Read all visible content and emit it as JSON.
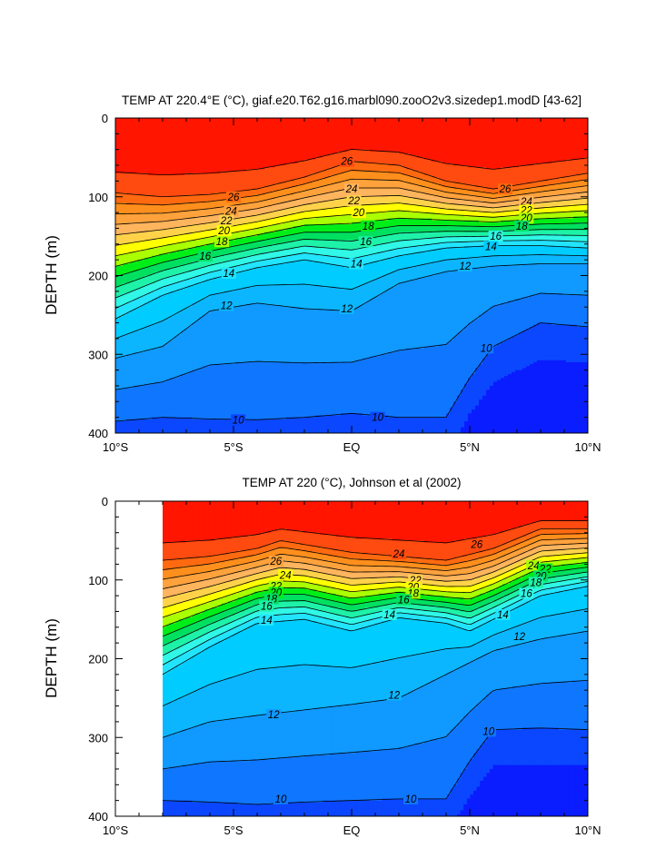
{
  "colors": {
    "bands": [
      "#0a1dff",
      "#0b47ff",
      "#0f77ff",
      "#1099ff",
      "#0cb6ff",
      "#00ccff",
      "#22e4ff",
      "#30f7e6",
      "#1ef2a8",
      "#00e060",
      "#00ee18",
      "#aaff00",
      "#ffff00",
      "#ffd24a",
      "#ffb45e",
      "#ffa23c",
      "#ff8f1c",
      "#ff6a10",
      "#ff4a10",
      "#ff1500"
    ],
    "line": "#000000"
  },
  "chart_data": [
    {
      "type": "contour",
      "title": "TEMP AT 220.4°E (°C), giaf.e20.T62.g16.marbl090.zooO2v3.sizedep1.modD [43-62]",
      "ylabel": "DEPTH (m)",
      "xlabel": "",
      "xlim": [
        -10,
        10
      ],
      "ylim": [
        400,
        0
      ],
      "x_ticks": [
        -10,
        -5,
        0,
        5,
        10
      ],
      "x_tick_labels": [
        "10°S",
        "5°S",
        "EQ",
        "5°N",
        "10°N"
      ],
      "y_ticks": [
        0,
        100,
        200,
        300,
        400
      ],
      "y_tick_labels": [
        "0",
        "100",
        "200",
        "300",
        "400"
      ],
      "contour_interval": 1,
      "contour_labels": [
        {
          "text": "26",
          "x": -5,
          "y": 100
        },
        {
          "text": "24",
          "x": -5.1,
          "y": 118
        },
        {
          "text": "22",
          "x": -5.3,
          "y": 130
        },
        {
          "text": "20",
          "x": -5.4,
          "y": 143
        },
        {
          "text": "18",
          "x": -5.5,
          "y": 157
        },
        {
          "text": "16",
          "x": -6.2,
          "y": 175
        },
        {
          "text": "14",
          "x": -5.2,
          "y": 197
        },
        {
          "text": "12",
          "x": -5.3,
          "y": 238
        },
        {
          "text": "10",
          "x": -4.8,
          "y": 383
        },
        {
          "text": "26",
          "x": -0.2,
          "y": 55
        },
        {
          "text": "24",
          "x": 0.0,
          "y": 90
        },
        {
          "text": "22",
          "x": 0.1,
          "y": 105
        },
        {
          "text": "20",
          "x": 0.3,
          "y": 120
        },
        {
          "text": "18",
          "x": 0.7,
          "y": 137
        },
        {
          "text": "16",
          "x": 0.6,
          "y": 157
        },
        {
          "text": "14",
          "x": 0.2,
          "y": 185
        },
        {
          "text": "12",
          "x": -0.2,
          "y": 242
        },
        {
          "text": "10",
          "x": 1.1,
          "y": 380
        },
        {
          "text": "12",
          "x": 4.8,
          "y": 188
        },
        {
          "text": "10",
          "x": 5.7,
          "y": 292
        },
        {
          "text": "26",
          "x": 6.5,
          "y": 90
        },
        {
          "text": "24",
          "x": 7.4,
          "y": 106
        },
        {
          "text": "22",
          "x": 7.4,
          "y": 117
        },
        {
          "text": "20",
          "x": 7.4,
          "y": 127
        },
        {
          "text": "18",
          "x": 7.2,
          "y": 137
        },
        {
          "text": "16",
          "x": 6.1,
          "y": 150
        },
        {
          "text": "14",
          "x": 5.9,
          "y": 163
        }
      ]
    },
    {
      "type": "contour",
      "title": "TEMP AT 220 (°C), Johnson et al (2002)",
      "ylabel": "DEPTH (m)",
      "xlabel": "",
      "xlim": [
        -10,
        10
      ],
      "ylim": [
        400,
        0
      ],
      "data_extent_x": [
        -8,
        10
      ],
      "x_ticks": [
        -10,
        -5,
        0,
        5,
        10
      ],
      "x_tick_labels": [
        "10°S",
        "5°S",
        "EQ",
        "5°N",
        "10°N"
      ],
      "y_ticks": [
        0,
        100,
        200,
        300,
        400
      ],
      "y_tick_labels": [
        "0",
        "100",
        "200",
        "300",
        "400"
      ],
      "contour_interval": 1,
      "contour_labels": [
        {
          "text": "26",
          "x": -3.2,
          "y": 76
        },
        {
          "text": "24",
          "x": -2.8,
          "y": 94
        },
        {
          "text": "22",
          "x": -3.2,
          "y": 108
        },
        {
          "text": "20",
          "x": -3.2,
          "y": 116
        },
        {
          "text": "18",
          "x": -3.4,
          "y": 124
        },
        {
          "text": "16",
          "x": -3.6,
          "y": 133
        },
        {
          "text": "14",
          "x": -3.6,
          "y": 151
        },
        {
          "text": "24",
          "x": 2.0,
          "y": 67
        },
        {
          "text": "22",
          "x": 2.7,
          "y": 100
        },
        {
          "text": "20",
          "x": 2.6,
          "y": 109
        },
        {
          "text": "18",
          "x": 2.6,
          "y": 117
        },
        {
          "text": "16",
          "x": 2.2,
          "y": 125
        },
        {
          "text": "14",
          "x": 1.6,
          "y": 144
        },
        {
          "text": "12",
          "x": 1.8,
          "y": 246
        },
        {
          "text": "12",
          "x": -3.3,
          "y": 271
        },
        {
          "text": "26",
          "x": 5.3,
          "y": 55
        },
        {
          "text": "10",
          "x": 5.8,
          "y": 292
        },
        {
          "text": "10",
          "x": -3.0,
          "y": 378
        },
        {
          "text": "10",
          "x": 2.5,
          "y": 378
        },
        {
          "text": "24",
          "x": 7.7,
          "y": 82
        },
        {
          "text": "22",
          "x": 8.2,
          "y": 86
        },
        {
          "text": "20",
          "x": 8.0,
          "y": 95
        },
        {
          "text": "18",
          "x": 7.8,
          "y": 103
        },
        {
          "text": "16",
          "x": 7.4,
          "y": 117
        },
        {
          "text": "14",
          "x": 6.4,
          "y": 144
        },
        {
          "text": "12",
          "x": 7.1,
          "y": 172
        }
      ]
    }
  ]
}
